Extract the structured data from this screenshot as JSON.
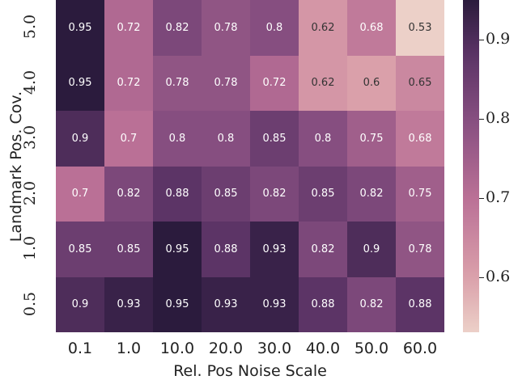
{
  "chart_data": {
    "type": "heatmap",
    "title": "",
    "xlabel": "Rel. Pos Noise Scale",
    "ylabel": "Landmark Pos. Cov.",
    "x_categories": [
      "0.1",
      "1.0",
      "10.0",
      "20.0",
      "30.0",
      "40.0",
      "50.0",
      "60.0"
    ],
    "y_categories": [
      "5.0",
      "4.0",
      "3.0",
      "2.0",
      "1.0",
      "0.5"
    ],
    "values": [
      [
        0.95,
        0.72,
        0.82,
        0.78,
        0.8,
        0.62,
        0.68,
        0.53
      ],
      [
        0.95,
        0.72,
        0.78,
        0.78,
        0.72,
        0.62,
        0.6,
        0.65
      ],
      [
        0.9,
        0.7,
        0.8,
        0.8,
        0.85,
        0.8,
        0.75,
        0.68
      ],
      [
        0.7,
        0.82,
        0.88,
        0.85,
        0.82,
        0.85,
        0.82,
        0.75
      ],
      [
        0.85,
        0.85,
        0.95,
        0.88,
        0.93,
        0.82,
        0.9,
        0.78
      ],
      [
        0.9,
        0.93,
        0.95,
        0.93,
        0.93,
        0.88,
        0.82,
        0.88
      ]
    ],
    "colorbar": {
      "ticks": [
        "0.9",
        "0.8",
        "0.7",
        "0.6"
      ],
      "range": [
        0.53,
        0.95
      ],
      "low_color": "#ecd0c8",
      "high_color": "#2b1b3d"
    },
    "annotations": true,
    "grid": false
  }
}
